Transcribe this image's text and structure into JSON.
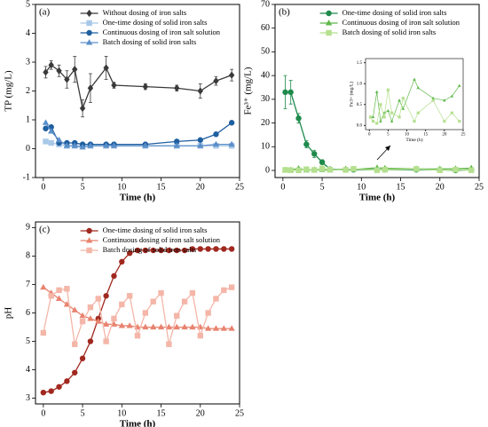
{
  "chart_data": [
    {
      "type": "line",
      "panel_label": "(a)",
      "xlabel": "Time (h)",
      "ylabel": "TP (mg/L)",
      "xlim": [
        -1,
        25
      ],
      "xticks": [
        0,
        5,
        10,
        15,
        20,
        25
      ],
      "ylim": [
        -1,
        5
      ],
      "yticks": [
        -1,
        0,
        1,
        2,
        3,
        4,
        5
      ],
      "legend": "upper center",
      "x": [
        0.3,
        1,
        2,
        3,
        4,
        5,
        6,
        8,
        9,
        13,
        17,
        20,
        22,
        24
      ],
      "series": [
        {
          "name": "Without dosing of iron salts",
          "color": "#3a3a3a",
          "marker": "diamond",
          "values": [
            2.65,
            2.9,
            2.7,
            2.4,
            2.75,
            1.4,
            2.1,
            2.8,
            2.2,
            2.15,
            2.1,
            2.0,
            2.35,
            2.55
          ],
          "errors": [
            0.2,
            0.15,
            0.2,
            0.3,
            0.45,
            0.3,
            0.5,
            0.4,
            0.1,
            0.1,
            0.1,
            0.25,
            0.15,
            0.2
          ]
        },
        {
          "name": "One-time dosing of solid iron salts",
          "color": "#a9c8e8",
          "marker": "square",
          "values": [
            0.25,
            0.2,
            0.15,
            0.1,
            0.1,
            0.1,
            0.1,
            0.1,
            0.1,
            0.1,
            0.1,
            0.1,
            0.1,
            0.1
          ]
        },
        {
          "name": "Continuous dosing of iron salt solution",
          "color": "#1f5fa0",
          "marker": "circle",
          "values": [
            0.7,
            0.75,
            0.2,
            0.2,
            0.2,
            0.15,
            0.15,
            0.15,
            0.15,
            0.15,
            0.25,
            0.3,
            0.5,
            0.9
          ]
        },
        {
          "name": "Batch dosing of solid iron salts",
          "color": "#5b8fc9",
          "marker": "triangle",
          "values": [
            0.9,
            0.6,
            0.3,
            0.1,
            0.1,
            0.05,
            0.1,
            0.1,
            0.1,
            0.1,
            0.1,
            0.1,
            0.15,
            0.15
          ]
        }
      ]
    },
    {
      "type": "line",
      "panel_label": "(b)",
      "xlabel": "Time (h)",
      "ylabel": "Fe³⁺ (mg/L)",
      "xlim": [
        -1,
        25
      ],
      "xticks": [
        0,
        5,
        10,
        15,
        20,
        25
      ],
      "ylim": [
        -3,
        70
      ],
      "yticks": [
        0,
        10,
        20,
        30,
        40,
        50,
        60,
        70
      ],
      "legend": "upper center",
      "x": [
        0.3,
        1,
        2,
        3,
        4,
        5,
        6,
        8,
        9,
        12,
        13,
        17,
        20,
        22,
        24
      ],
      "series": [
        {
          "name": "One-time dosing of solid iron salts",
          "color": "#1e8a4c",
          "marker": "circle",
          "values": [
            33,
            33,
            22,
            11,
            7,
            3.5,
            0.5,
            0.3,
            0.3,
            0.3,
            0.3,
            0.3,
            0.3,
            0,
            0.3
          ],
          "errors": [
            7,
            5,
            2,
            1.5,
            1.5,
            1,
            0.3,
            0.2,
            0.2,
            0.2,
            0.2,
            0.2,
            0.2,
            0.5,
            0.2
          ]
        },
        {
          "name": "Continuous dosing of iron salt solution",
          "color": "#5fb84a",
          "marker": "triangle",
          "values": [
            0.2,
            0.2,
            0.8,
            0.1,
            0.3,
            0.35,
            0.1,
            0.6,
            0.4,
            1.1,
            0.9,
            0.65,
            0.6,
            0.7,
            0.95
          ]
        },
        {
          "name": "Batch dosing of solid iron salts",
          "color": "#b5e08f",
          "marker": "square",
          "values": [
            0.2,
            0.1,
            0.05,
            0.5,
            0.2,
            0.85,
            0.3,
            0.2,
            0.65,
            0.1,
            0.3,
            0.6,
            0.1,
            0.3,
            0.1
          ]
        }
      ]
    },
    {
      "type": "line",
      "xlabel": "Time (h)",
      "ylabel": "Fe3+ (mg/L)",
      "xlim": [
        -1,
        25
      ],
      "xticks": [
        0,
        5,
        10,
        15,
        20,
        25
      ],
      "ylim": [
        -0.1,
        1.6
      ],
      "yticks": [
        {
          "value": 0,
          "label": "0.0"
        },
        0.5,
        {
          "value": 1,
          "label": "1.0"
        },
        1.5
      ],
      "x": [
        0.3,
        1,
        2,
        3,
        4,
        5,
        6,
        8,
        9,
        12,
        13,
        17,
        20,
        22,
        24
      ],
      "series": [
        {
          "color": "#5fb84a",
          "marker": "triangle",
          "values": [
            0.2,
            0.2,
            0.8,
            0.1,
            0.3,
            0.35,
            0.1,
            0.6,
            0.4,
            1.1,
            0.9,
            0.65,
            0.6,
            0.7,
            0.95
          ]
        },
        {
          "color": "#b5e08f",
          "marker": "square",
          "values": [
            0.2,
            0.1,
            0.05,
            0.5,
            0.2,
            0.85,
            0.3,
            0.2,
            0.65,
            0.1,
            0.3,
            0.6,
            0.1,
            0.3,
            0.1
          ]
        }
      ]
    },
    {
      "type": "line",
      "panel_label": "(c)",
      "xlabel": "Time (h)",
      "ylabel": "pH",
      "xlim": [
        -1,
        25
      ],
      "xticks": [
        0,
        5,
        10,
        15,
        20,
        25
      ],
      "ylim": [
        2.8,
        9.2
      ],
      "yticks": [
        3,
        4,
        5,
        6,
        7,
        8,
        9
      ],
      "legend": "upper center",
      "x": [
        0,
        1,
        2,
        3,
        4,
        5,
        6,
        7,
        8,
        9,
        10,
        11,
        12,
        13,
        14,
        15,
        16,
        17,
        18,
        19,
        20,
        21,
        22,
        23,
        24
      ],
      "series": [
        {
          "name": "One-time dosing of solid iron salts",
          "color": "#a0281e",
          "marker": "circle",
          "values": [
            3.2,
            3.25,
            3.4,
            3.6,
            3.9,
            4.4,
            5.0,
            5.8,
            6.6,
            7.3,
            7.8,
            8.1,
            8.2,
            8.2,
            8.2,
            8.2,
            8.2,
            8.2,
            8.2,
            8.25,
            8.25,
            8.25,
            8.25,
            8.25,
            8.25
          ]
        },
        {
          "name": "Continuous dosing of iron salt solution",
          "color": "#e8836f",
          "marker": "triangle",
          "values": [
            6.9,
            6.7,
            6.5,
            6.3,
            6.1,
            5.9,
            5.8,
            5.7,
            5.6,
            5.6,
            5.55,
            5.55,
            5.5,
            5.5,
            5.5,
            5.5,
            5.5,
            5.5,
            5.5,
            5.5,
            5.5,
            5.45,
            5.45,
            5.45,
            5.45
          ]
        },
        {
          "name": "Batch dosing of solid iron salts",
          "color": "#f4b6a8",
          "marker": "square",
          "values": [
            5.3,
            6.6,
            6.8,
            6.85,
            4.9,
            5.7,
            6.2,
            6.5,
            5.0,
            5.8,
            6.3,
            6.6,
            5.2,
            6.0,
            6.4,
            6.7,
            4.9,
            5.9,
            6.4,
            6.7,
            5.2,
            6.0,
            6.5,
            6.8,
            6.9
          ]
        }
      ]
    }
  ]
}
